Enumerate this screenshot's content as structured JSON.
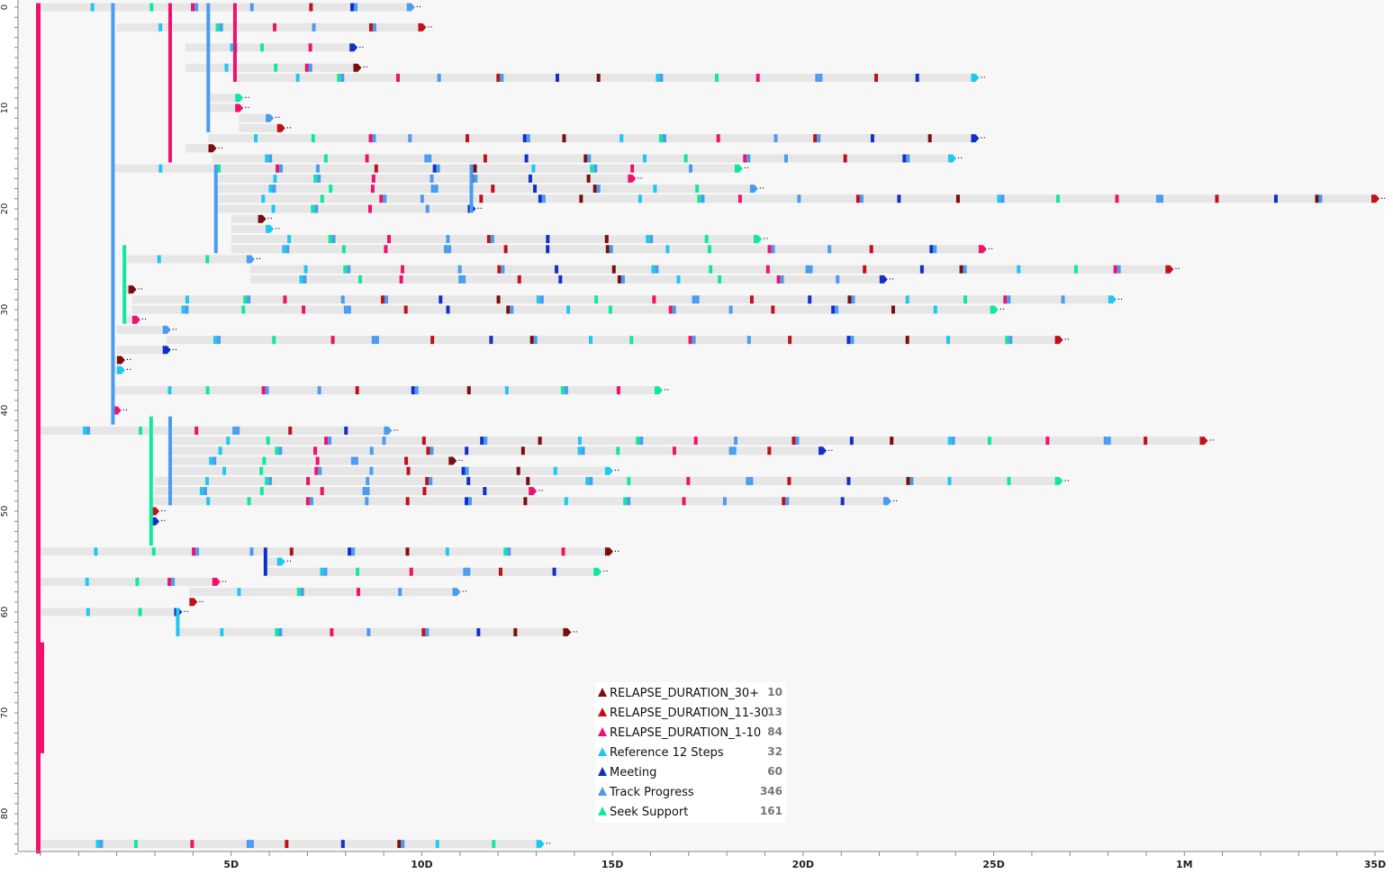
{
  "chart_data": {
    "type": "timeline",
    "title": "",
    "xlabel": "",
    "ylabel": "",
    "x_ticks": [
      {
        "label": "5D",
        "days": 5
      },
      {
        "label": "10D",
        "days": 10
      },
      {
        "label": "15D",
        "days": 15
      },
      {
        "label": "20D",
        "days": 20
      },
      {
        "label": "25D",
        "days": 25
      },
      {
        "label": "1M",
        "days": 30
      },
      {
        "label": "35D",
        "days": 35
      }
    ],
    "y_ticks": [
      {
        "label": "0",
        "row": 0
      },
      {
        "label": "10",
        "row": 10
      },
      {
        "label": "20",
        "row": 20
      },
      {
        "label": "30",
        "row": 30
      },
      {
        "label": "40",
        "row": 40
      },
      {
        "label": "50",
        "row": 50
      },
      {
        "label": "60",
        "row": 60
      },
      {
        "label": "70",
        "row": 70
      },
      {
        "label": "80",
        "row": 80
      }
    ],
    "xlim_days": [
      0,
      35
    ],
    "ylim_rows": [
      0,
      84
    ],
    "legend": {
      "placement": "bottom-center",
      "items": [
        {
          "label": "RELAPSE_DURATION_30+",
          "count": "10",
          "color": "#7a0e0e"
        },
        {
          "label": "RELAPSE_DURATION_11-30",
          "count": "13",
          "color": "#c0101a"
        },
        {
          "label": "RELAPSE_DURATION_1-10",
          "count": "84",
          "color": "#f0106e"
        },
        {
          "label": "Reference 12 Steps",
          "count": "32",
          "color": "#1ec8f0"
        },
        {
          "label": "Meeting",
          "count": "60",
          "color": "#1030c8"
        },
        {
          "label": "Track Progress",
          "count": "346",
          "color": "#4a9cf0"
        },
        {
          "label": "Seek Support",
          "count": "161",
          "color": "#10e8a0"
        }
      ]
    },
    "more_marker": "··",
    "sequences": [
      {
        "row": 0,
        "start": 0,
        "end": 9.7
      },
      {
        "row": 2,
        "start": 2,
        "end": 10.0
      },
      {
        "row": 4,
        "start": 3.8,
        "end": 8.2
      },
      {
        "row": 6,
        "start": 3.8,
        "end": 8.3
      },
      {
        "row": 7,
        "start": 5.1,
        "end": 24.5
      },
      {
        "row": 9,
        "start": 4.4,
        "end": 5.2
      },
      {
        "row": 10,
        "start": 4.4,
        "end": 5.2
      },
      {
        "row": 11,
        "start": 5.2,
        "end": 6.0
      },
      {
        "row": 12,
        "start": 5.2,
        "end": 6.3
      },
      {
        "row": 13,
        "start": 4.4,
        "end": 24.5
      },
      {
        "row": 14,
        "start": 3.8,
        "end": 4.5
      },
      {
        "row": 15,
        "start": 4.5,
        "end": 23.9
      },
      {
        "row": 16,
        "start": 1.9,
        "end": 18.3
      },
      {
        "row": 17,
        "start": 4.6,
        "end": 15.5
      },
      {
        "row": 18,
        "start": 4.6,
        "end": 18.7
      },
      {
        "row": 19,
        "start": 4.6,
        "end": 35.0
      },
      {
        "row": 20,
        "start": 4.6,
        "end": 11.3
      },
      {
        "row": 21,
        "start": 5.0,
        "end": 5.8
      },
      {
        "row": 22,
        "start": 5.0,
        "end": 6.0
      },
      {
        "row": 23,
        "start": 5.0,
        "end": 18.8
      },
      {
        "row": 24,
        "start": 5.0,
        "end": 24.7
      },
      {
        "row": 25,
        "start": 2.2,
        "end": 5.5
      },
      {
        "row": 26,
        "start": 5.5,
        "end": 29.6
      },
      {
        "row": 27,
        "start": 5.5,
        "end": 22.1
      },
      {
        "row": 28,
        "start": 2.2,
        "end": 2.4
      },
      {
        "row": 29,
        "start": 2.4,
        "end": 28.1
      },
      {
        "row": 30,
        "start": 2.4,
        "end": 25.0
      },
      {
        "row": 31,
        "start": 2.2,
        "end": 2.5
      },
      {
        "row": 32,
        "start": 2.0,
        "end": 3.3
      },
      {
        "row": 33,
        "start": 3.3,
        "end": 26.7
      },
      {
        "row": 34,
        "start": 2.0,
        "end": 3.3
      },
      {
        "row": 35,
        "start": 1.9,
        "end": 2.1
      },
      {
        "row": 36,
        "start": 1.9,
        "end": 2.1
      },
      {
        "row": 38,
        "start": 1.9,
        "end": 16.2
      },
      {
        "row": 40,
        "start": 1.9,
        "end": 2.0
      },
      {
        "row": 42,
        "start": 0,
        "end": 9.1
      },
      {
        "row": 43,
        "start": 3.4,
        "end": 30.5
      },
      {
        "row": 44,
        "start": 3.4,
        "end": 20.5
      },
      {
        "row": 45,
        "start": 3.4,
        "end": 10.8
      },
      {
        "row": 46,
        "start": 3.4,
        "end": 14.9
      },
      {
        "row": 47,
        "start": 3.0,
        "end": 26.7
      },
      {
        "row": 48,
        "start": 3.0,
        "end": 12.9
      },
      {
        "row": 49,
        "start": 2.9,
        "end": 22.2
      },
      {
        "row": 50,
        "start": 2.9,
        "end": 3.0
      },
      {
        "row": 51,
        "start": 2.9,
        "end": 3.0
      },
      {
        "row": 54,
        "start": 0,
        "end": 14.9
      },
      {
        "row": 55,
        "start": 5.9,
        "end": 6.3
      },
      {
        "row": 56,
        "start": 5.9,
        "end": 14.6
      },
      {
        "row": 57,
        "start": 0,
        "end": 4.6
      },
      {
        "row": 58,
        "start": 3.9,
        "end": 10.9
      },
      {
        "row": 59,
        "start": 3.9,
        "end": 4.0
      },
      {
        "row": 60,
        "start": 0,
        "end": 3.6
      },
      {
        "row": 62,
        "start": 3.6,
        "end": 13.8
      },
      {
        "row": 83,
        "start": 0,
        "end": 13.1
      }
    ]
  }
}
